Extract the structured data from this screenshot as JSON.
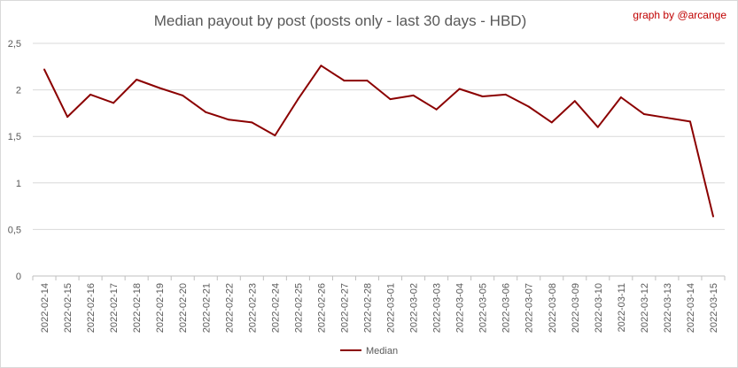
{
  "chart_data": {
    "type": "line",
    "title": "Median payout by post (posts only - last 30 days - HBD)",
    "credit": "graph by @arcange",
    "xlabel": "",
    "ylabel": "",
    "ylim": [
      0,
      2.5
    ],
    "yticks": [
      "0",
      "0,5",
      "1",
      "1,5",
      "2",
      "2,5"
    ],
    "yticks_values": [
      0,
      0.5,
      1,
      1.5,
      2,
      2.5
    ],
    "grid": true,
    "legend_placement": "bottom",
    "categories": [
      "2022-02-14",
      "2022-02-15",
      "2022-02-16",
      "2022-02-17",
      "2022-02-18",
      "2022-02-19",
      "2022-02-20",
      "2022-02-21",
      "2022-02-22",
      "2022-02-23",
      "2022-02-24",
      "2022-02-25",
      "2022-02-26",
      "2022-02-27",
      "2022-02-28",
      "2022-03-01",
      "2022-03-02",
      "2022-03-03",
      "2022-03-04",
      "2022-03-05",
      "2022-03-06",
      "2022-03-07",
      "2022-03-08",
      "2022-03-09",
      "2022-03-10",
      "2022-03-11",
      "2022-03-12",
      "2022-03-13",
      "2022-03-14",
      "2022-03-15"
    ],
    "series": [
      {
        "name": "Median",
        "color": "#8b0000",
        "values": [
          2.22,
          1.71,
          1.95,
          1.86,
          2.11,
          2.02,
          1.94,
          1.76,
          1.68,
          1.65,
          1.51,
          1.9,
          2.26,
          2.1,
          2.1,
          1.9,
          1.94,
          1.79,
          2.01,
          1.93,
          1.95,
          1.82,
          1.65,
          1.88,
          1.6,
          1.92,
          1.74,
          1.7,
          1.66,
          0.64
        ]
      }
    ]
  }
}
